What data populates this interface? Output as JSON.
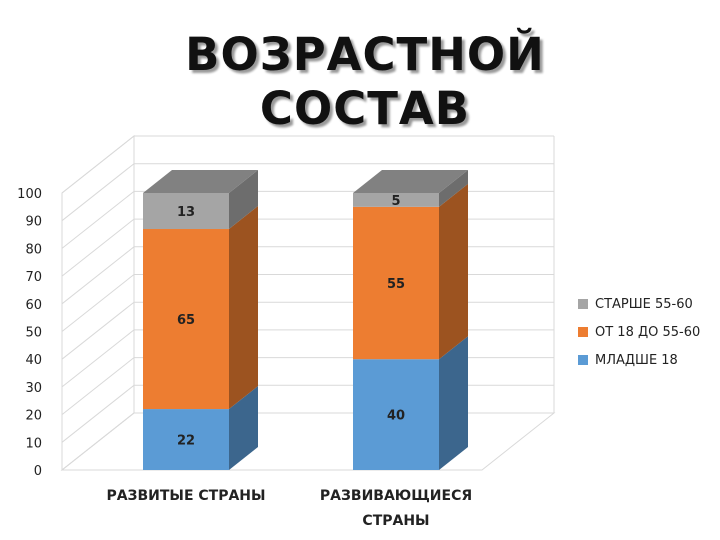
{
  "title_line1": "ВОЗРАСТНОЙ",
  "title_line2": "СОСТАВ",
  "chart_data": {
    "type": "bar",
    "stacked": true,
    "three_d": true,
    "categories": [
      "РАЗВИТЫЕ СТРАНЫ",
      "РАЗВИВАЮЩИЕСЯ СТРАНЫ"
    ],
    "series": [
      {
        "name": "МЛАДШЕ 18",
        "values": [
          22,
          40
        ],
        "color": "#5B9BD5"
      },
      {
        "name": "ОТ 18 ДО 55-60",
        "values": [
          65,
          55
        ],
        "color": "#ED7D31"
      },
      {
        "name": "СТАРШЕ 55-60",
        "values": [
          13,
          5
        ],
        "color": "#A5A5A5"
      }
    ],
    "ylim": [
      0,
      100
    ],
    "yticks": [
      0,
      10,
      20,
      30,
      40,
      50,
      60,
      70,
      80,
      90,
      100
    ],
    "grid": true,
    "legend": "right"
  }
}
